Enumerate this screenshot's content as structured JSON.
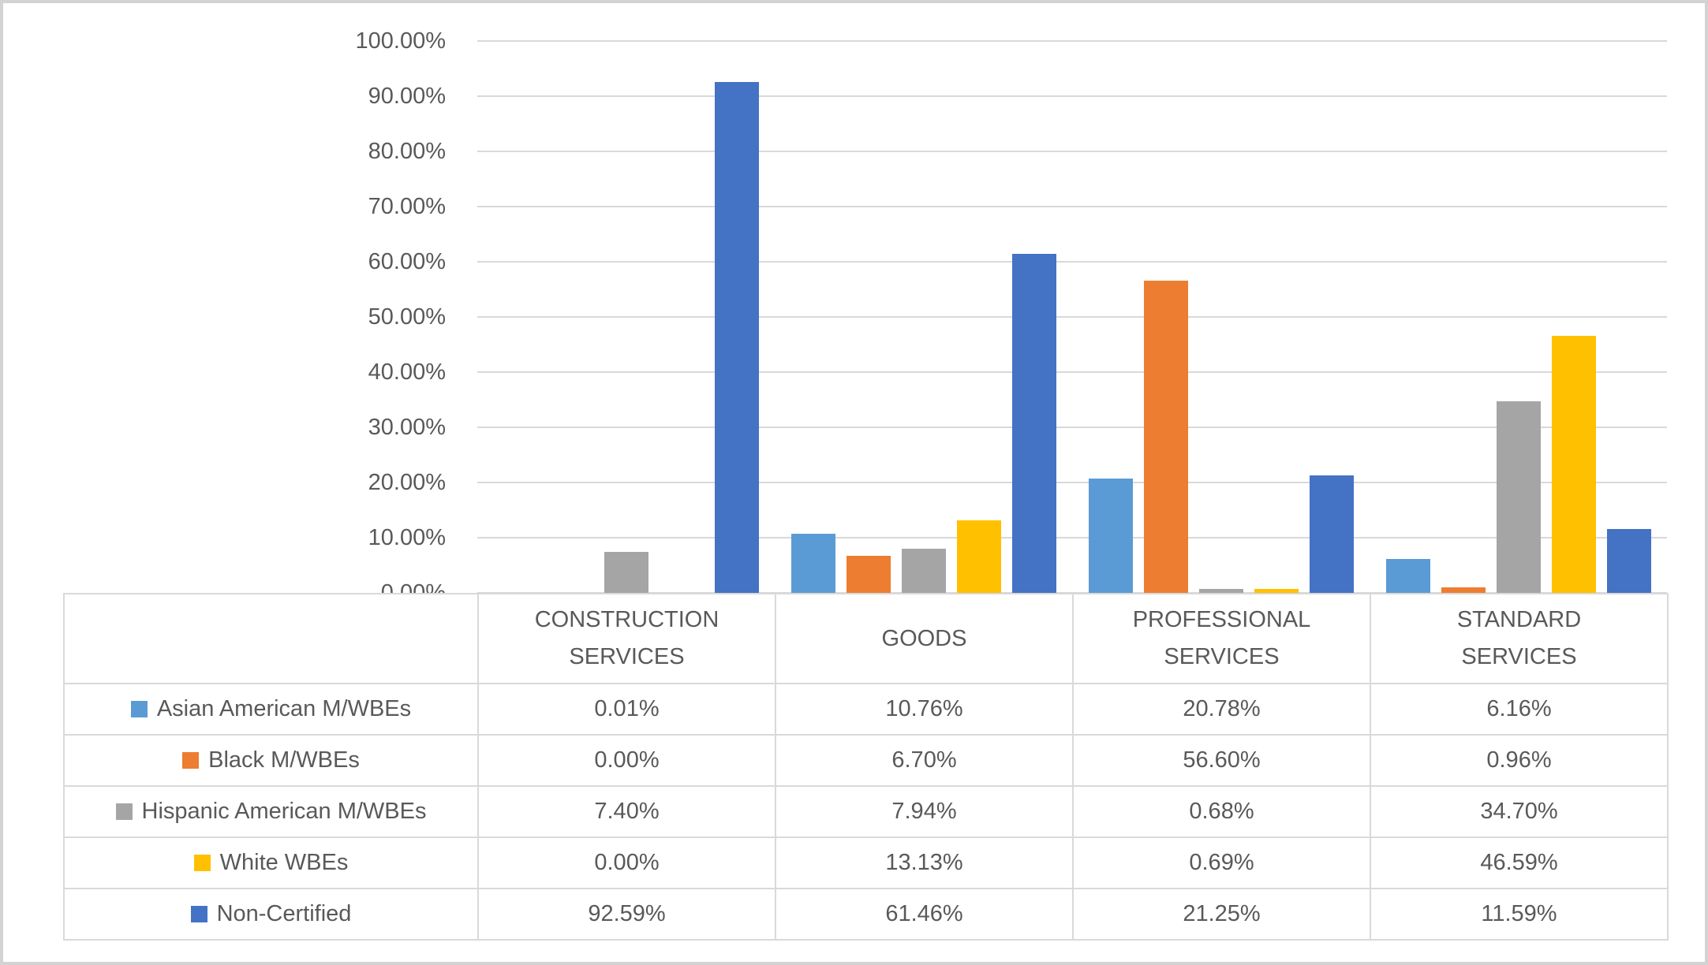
{
  "chart_data": {
    "type": "bar",
    "title": "",
    "xlabel": "",
    "ylabel": "",
    "grid": true,
    "legend_position": "table-left",
    "categories": [
      "CONSTRUCTION\nSERVICES",
      "GOODS",
      "PROFESSIONAL\nSERVICES",
      "STANDARD\nSERVICES"
    ],
    "series": [
      {
        "name": "Asian American M/WBEs",
        "color": "#5B9BD5",
        "values": [
          0.01,
          10.76,
          20.78,
          6.16
        ],
        "labels": [
          "0.01%",
          "10.76%",
          "20.78%",
          "6.16%"
        ]
      },
      {
        "name": "Black M/WBEs",
        "color": "#ED7D31",
        "values": [
          0.0,
          6.7,
          56.6,
          0.96
        ],
        "labels": [
          "0.00%",
          "6.70%",
          "56.60%",
          "0.96%"
        ]
      },
      {
        "name": "Hispanic American M/WBEs",
        "color": "#A5A5A5",
        "values": [
          7.4,
          7.94,
          0.68,
          34.7
        ],
        "labels": [
          "7.40%",
          "7.94%",
          "0.68%",
          "34.70%"
        ]
      },
      {
        "name": "White WBEs",
        "color": "#FFC000",
        "values": [
          0.0,
          13.13,
          0.69,
          46.59
        ],
        "labels": [
          "0.00%",
          "13.13%",
          "0.69%",
          "46.59%"
        ]
      },
      {
        "name": "Non-Certified",
        "color": "#4472C4",
        "values": [
          92.59,
          61.46,
          21.25,
          11.59
        ],
        "labels": [
          "92.59%",
          "61.46%",
          "21.25%",
          "11.59%"
        ]
      }
    ],
    "y_axis": {
      "min": 0,
      "max": 100,
      "step": 10,
      "tick_labels": [
        "100.00%",
        "90.00%",
        "80.00%",
        "70.00%",
        "60.00%",
        "50.00%",
        "40.00%",
        "30.00%",
        "20.00%",
        "10.00%",
        "0.00%"
      ]
    }
  },
  "colors": {
    "text": "#595959",
    "gridline": "#D9D9D9",
    "table_border": "#D9D9D9",
    "frame_border": "#D3D3D3",
    "background": "#FFFFFF"
  }
}
